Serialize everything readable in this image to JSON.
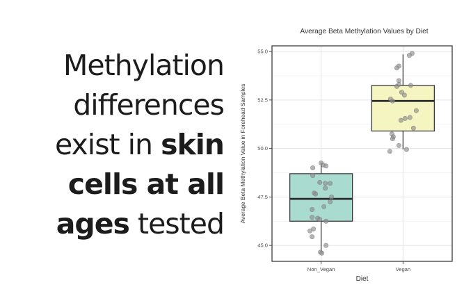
{
  "headline": {
    "full_text": "Methylation differences exist in skin cells at all ages tested",
    "lines": [
      {
        "segments": [
          {
            "text": "Methylation",
            "bold": false
          }
        ]
      },
      {
        "segments": [
          {
            "text": "differences",
            "bold": false
          }
        ]
      },
      {
        "segments": [
          {
            "text": "exist in ",
            "bold": false
          },
          {
            "text": "skin",
            "bold": true
          }
        ]
      },
      {
        "segments": [
          {
            "text": "cells at all",
            "bold": true
          }
        ]
      },
      {
        "segments": [
          {
            "text": "ages",
            "bold": true
          },
          {
            "text": " tested",
            "bold": false
          }
        ]
      }
    ],
    "text_color": "#1c1c1c"
  },
  "chart_data": {
    "type": "boxplot",
    "title": "Average Beta Methylation Values by Diet",
    "xlabel": "Diet",
    "ylabel": "Average Beta Methylation Value in Forehead Samples",
    "categories": [
      "Non_Vegan",
      "Vegan"
    ],
    "y_ticks": [
      45.0,
      47.5,
      50.0,
      52.5,
      55.0
    ],
    "y_tick_labels": [
      "45.0",
      "47.5",
      "50.0",
      "52.5",
      "55.0"
    ],
    "y_minor_ticks": [
      46.25,
      48.75,
      51.25,
      53.75
    ],
    "ylim": [
      44.18,
      55.29
    ],
    "grid": true,
    "legend": "none",
    "series": [
      {
        "name": "Non_Vegan",
        "fill": "#A9DBD1",
        "q1": 46.25,
        "median": 47.4,
        "q3": 48.7,
        "whisker_low": 44.65,
        "whisker_high": 49.25,
        "points": [
          [
            49.25,
            0
          ],
          [
            49.15,
            3
          ],
          [
            49.1,
            7
          ],
          [
            49.0,
            -12
          ],
          [
            48.6,
            -12
          ],
          [
            48.25,
            -2
          ],
          [
            48.2,
            6
          ],
          [
            48.2,
            13
          ],
          [
            47.95,
            6
          ],
          [
            47.7,
            -10
          ],
          [
            47.65,
            -8
          ],
          [
            47.5,
            15
          ],
          [
            47.25,
            13
          ],
          [
            47.0,
            4
          ],
          [
            46.85,
            -13
          ],
          [
            46.45,
            -13
          ],
          [
            46.4,
            -5
          ],
          [
            46.35,
            -2
          ],
          [
            46.25,
            7
          ],
          [
            45.85,
            -11
          ],
          [
            45.75,
            -16
          ],
          [
            45.45,
            -13
          ],
          [
            45.0,
            7
          ],
          [
            44.65,
            -1
          ],
          [
            44.6,
            1
          ]
        ]
      },
      {
        "name": "Vegan",
        "fill": "#F5F5C1",
        "q1": 50.9,
        "median": 52.45,
        "q3": 53.25,
        "whisker_low": 49.95,
        "whisker_high": 54.85,
        "points": [
          [
            54.9,
            13
          ],
          [
            54.8,
            9
          ],
          [
            54.25,
            -6
          ],
          [
            54.15,
            -9
          ],
          [
            53.5,
            -6
          ],
          [
            53.3,
            -6
          ],
          [
            53.25,
            11
          ],
          [
            53.2,
            -9
          ],
          [
            52.9,
            -2
          ],
          [
            52.75,
            2
          ],
          [
            52.55,
            -18
          ],
          [
            52.45,
            -15
          ],
          [
            51.95,
            19
          ],
          [
            51.6,
            10
          ],
          [
            51.55,
            3
          ],
          [
            51.45,
            -3
          ],
          [
            51.05,
            15
          ],
          [
            50.75,
            -16
          ],
          [
            50.6,
            -14
          ],
          [
            50.5,
            -15
          ],
          [
            50.15,
            -6
          ],
          [
            49.95,
            5
          ],
          [
            49.85,
            -19
          ]
        ]
      }
    ],
    "colors": {
      "box_stroke": "#3a3a3a",
      "median": "#2b2b2b",
      "point_fill": "#8d8d8d",
      "point_stroke": "#787878",
      "grid_major": "#e3e3e3",
      "grid_minor": "#f1f1f1",
      "panel_border": "#4a4a4a",
      "panel_bg": "#ffffff",
      "title": "#333333",
      "tick_label": "#4d4d4d",
      "axis_label": "#333333"
    }
  }
}
